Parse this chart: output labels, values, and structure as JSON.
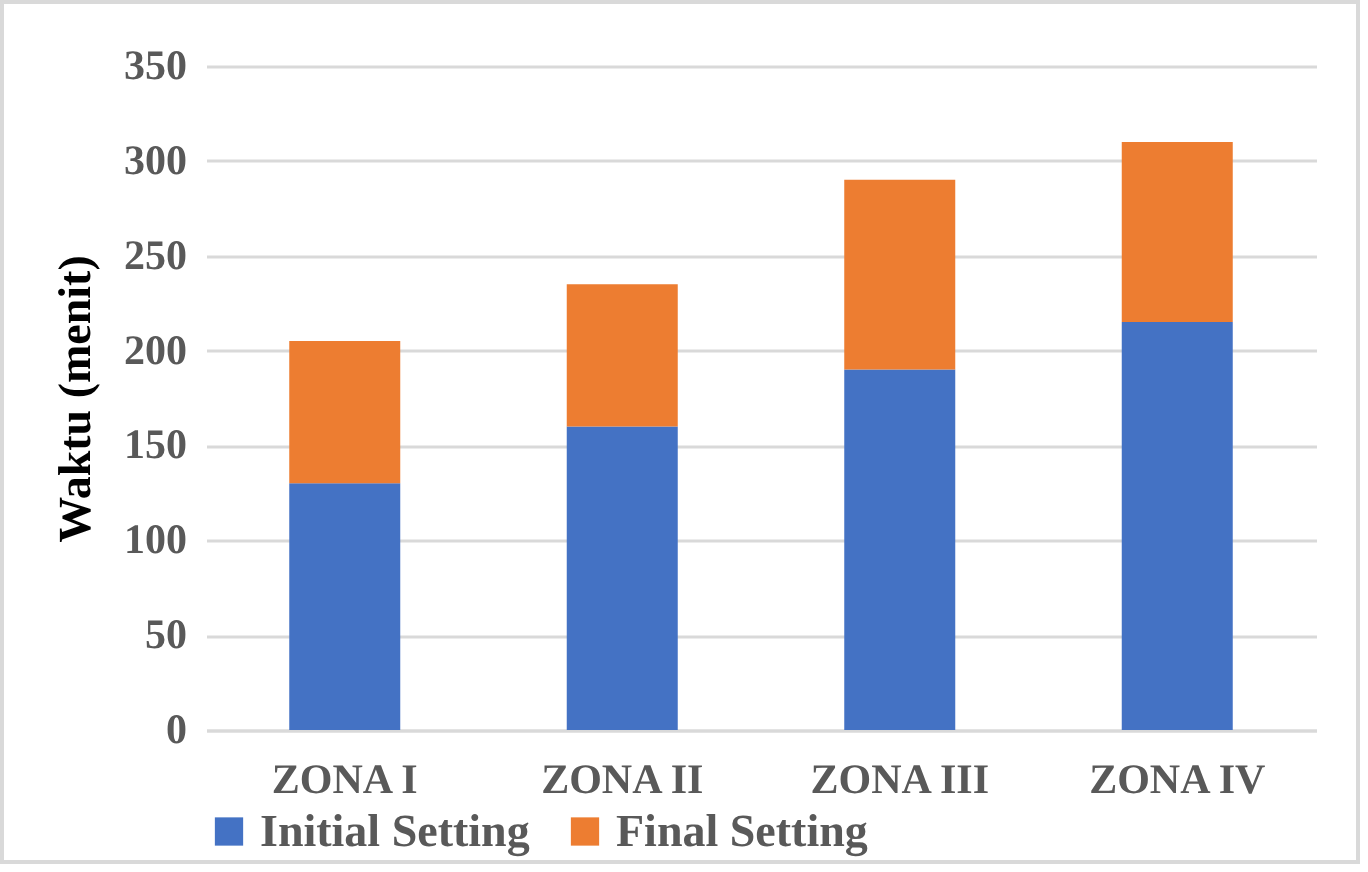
{
  "chart_data": {
    "type": "bar",
    "stacked": true,
    "ylabel": "Waktu (menit)",
    "categories": [
      "ZONA I",
      "ZONA II",
      "ZONA III",
      "ZONA IV"
    ],
    "series": [
      {
        "name": "Initial Setting",
        "color": "#4472c4",
        "values": [
          130,
          160,
          190,
          215
        ]
      },
      {
        "name": "Final Setting",
        "color": "#ed7d31",
        "values": [
          75,
          75,
          100,
          95
        ]
      }
    ],
    "ylim": [
      0,
      350
    ],
    "yticks": [
      0,
      50,
      100,
      150,
      200,
      250,
      300,
      350
    ],
    "grid": "y",
    "legend": "bottom"
  }
}
